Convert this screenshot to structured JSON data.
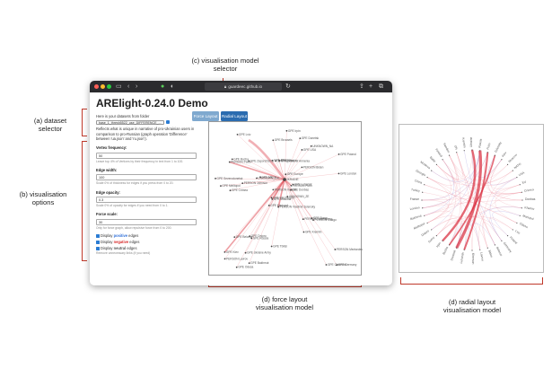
{
  "callouts": {
    "model_selector": "(c) visualisation model\nselector",
    "dataset": "(a) dataset\nselector",
    "options": "(b) visualisation\noptions",
    "force": "(d) force layout\nvisualisation model",
    "radial": "(d) radial layout\nvisualisation model"
  },
  "browser": {
    "url": "guardeec.github.io",
    "colors": {
      "close": "#ff5f57",
      "minimize": "#febc2e",
      "maximize": "#28c840",
      "accent": "#2b7cd3"
    },
    "icons": [
      "sidebar-icon",
      "back-icon",
      "forward-icon",
      "shield-icon",
      "share-icon",
      "new-tab-icon",
      "tabs-icon",
      "reload-icon"
    ]
  },
  "app": {
    "title": "ARElight-0.24.0 Demo",
    "dataset_label": "Here is your datasets from folder",
    "dataset_value": "base_1_thresh5522_use_DIFFERENCE_...",
    "dataset_desc": "Reflects what is unique in narrative of pro-Ukrainian users in comparison to pro-Russian (graph operation 'Difference' between 'ua.json' and 'ru.json').",
    "fields": [
      {
        "label": "Vertex frequency:",
        "value": "50",
        "help": "Leave top 4% of Vertices by their frequency in text from 1 to 100."
      },
      {
        "label": "Edge width:",
        "value": "100",
        "help": "Scale 0% of thickness for edges if you press from 0 to 20."
      },
      {
        "label": "Edge opacity:",
        "value": "0.3",
        "help": "Scale 0% of opacity for edges if you need from 0 to 1."
      },
      {
        "label": "Force scale:",
        "value": "30",
        "help": "Only for force graph, allow repulsive force from 0 to 200."
      }
    ],
    "checks": [
      {
        "prefix": "Display ",
        "word": "positive",
        "suffix": " edges"
      },
      {
        "prefix": "Display ",
        "word": "negative",
        "suffix": " edges"
      },
      {
        "prefix": "Display ",
        "word": "neutral",
        "suffix": " edges"
      }
    ],
    "footer_note": "Remove unnecessary links (if you need)",
    "buttons": {
      "force": "Force Layout",
      "radial": "Radial Layout"
    }
  },
  "force_graph": {
    "hub": "UKRAINE",
    "labels": [
      "UKRAINE",
      "PERSON Vladimir Zelensky",
      "PERSON Pavlo",
      "GPE Moscow",
      "GPE Kiev",
      "PERSON Putin",
      "GPE Russia",
      "GPE Donetsk",
      "GPE Kharkiv",
      "GPE USA",
      "UNKNOWN_ZE",
      "GPE Lviv",
      "GPE Germany",
      "GPE Crimea",
      "GPE Poland",
      "GPE Mariupol",
      "PERSON Biden",
      "GPE Odesa",
      "GPE Kherson",
      "GPE Europe",
      "GPE Belarus",
      "GPE Minsk",
      "PERSON Lavrov",
      "GPE Ukraine Army",
      "GPE Republic of Armenia",
      "GPE Luhansk",
      "PERSON Shoigu",
      "GPE Bucha",
      "GPE Brussels",
      "GPE Melitopol",
      "PERSON Stoltenberg",
      "GPE London",
      "GPE Washington",
      "GPE Tbilisi",
      "PERSON Kuleba",
      "GPE Zaporizhzhia",
      "UNKNOWN_NA",
      "GPE Dnipro",
      "GPE Chernihiv",
      "PERSON Medvedev",
      "GPE Sumy",
      "GPE Irpin",
      "UNKNOWN_ZAL",
      "PERSON Johnson",
      "GPE Kremlin",
      "GPE Bakhmut",
      "GPE Severodonetsk",
      "GPE Donbas"
    ]
  },
  "radial_graph": {
    "labels": [
      "Ukraine",
      "Russia",
      "Putin",
      "Zelensky",
      "Kiev",
      "Moscow",
      "NATO",
      "USA",
      "EU",
      "Crimea",
      "Donbas",
      "Kharkiv",
      "Mariupol",
      "Odesa",
      "Lviv",
      "Poland",
      "Germany",
      "Belarus",
      "Biden",
      "Lavrov",
      "Kherson",
      "Luhansk",
      "Donetsk",
      "Bucha",
      "Irpin",
      "Sumy",
      "Dnipro",
      "Melitopol",
      "Bakhmut",
      "London",
      "France",
      "Turkey",
      "China",
      "Georgia",
      "Moldova",
      "Baltic",
      "Finland",
      "Sweden",
      "UN",
      "Kremlin"
    ]
  }
}
